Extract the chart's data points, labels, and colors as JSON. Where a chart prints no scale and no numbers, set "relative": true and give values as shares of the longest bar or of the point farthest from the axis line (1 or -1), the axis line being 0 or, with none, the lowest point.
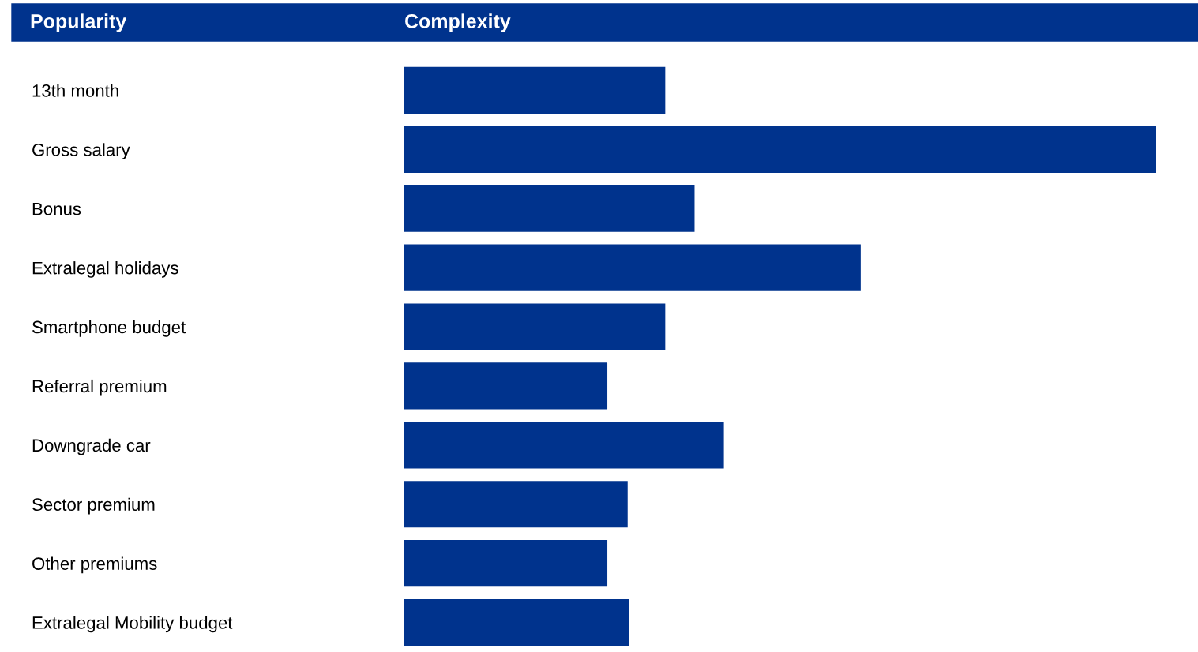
{
  "chart_data": {
    "type": "bar",
    "orientation": "horizontal",
    "relative": true,
    "xlabel": "Complexity",
    "ylabel": "Popularity",
    "categories": [
      "13th month",
      "Gross salary",
      "Bonus",
      "Extralegal holidays",
      "Smartphone budget",
      "Referral premium",
      "Downgrade car",
      "Sector premium",
      "Other premiums",
      "Extralegal Mobility budget"
    ],
    "values": [
      0.347,
      1,
      0.386,
      0.607,
      0.347,
      0.27,
      0.425,
      0.297,
      0.27,
      0.299
    ],
    "color": "#00338d",
    "grid": false,
    "legend": false
  }
}
